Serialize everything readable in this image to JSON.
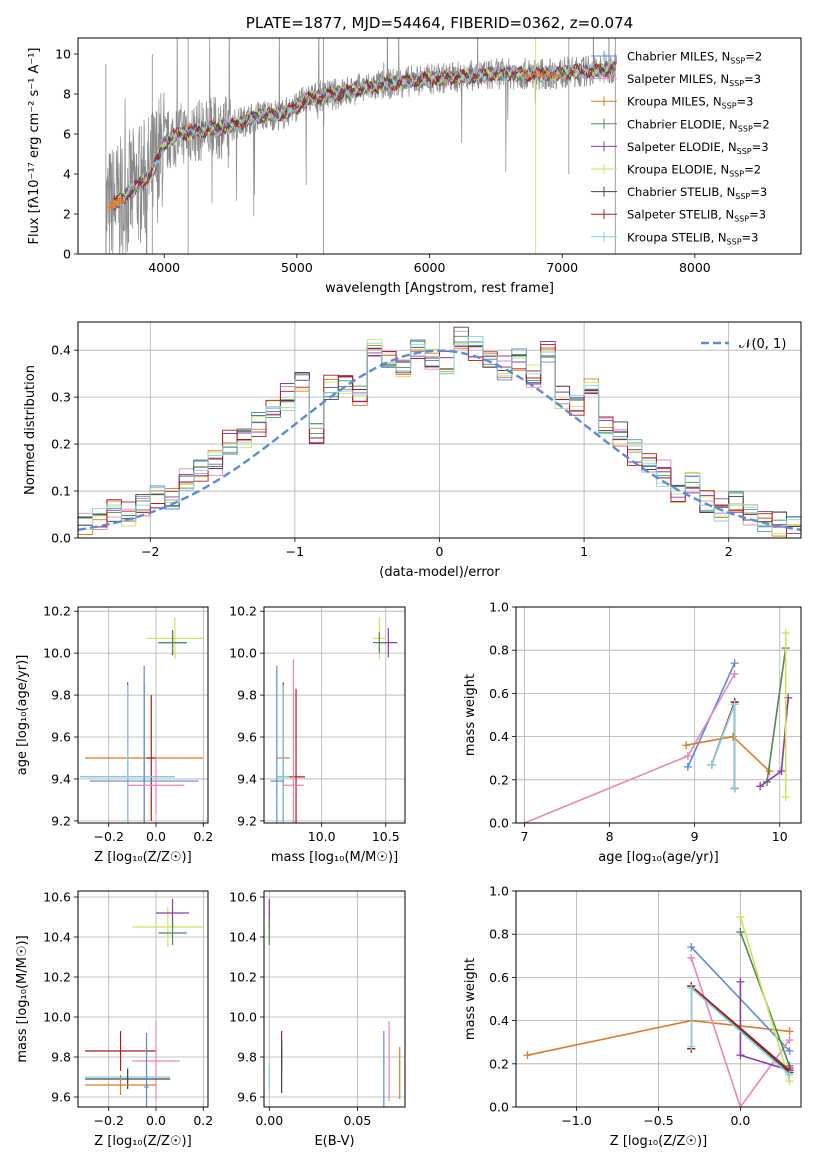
{
  "chart_data": [
    {
      "id": "spectrum",
      "type": "line",
      "title": "PLATE=1877, MJD=54464, FIBERID=0362, z=0.074",
      "xlabel": "wavelength [Angstrom, rest frame]",
      "ylabel": "Flux [fλ10⁻¹⁷ erg cm⁻² s⁻¹ A⁻¹]",
      "xlim": [
        3350,
        8800
      ],
      "ylim": [
        0,
        10.8
      ],
      "xticks": [
        4000,
        5000,
        6000,
        7000,
        8000
      ],
      "yticks": [
        0,
        2,
        4,
        6,
        8,
        10
      ],
      "legend_loc": "upper right",
      "legend": [
        {
          "label": "Chabrier MILES, N",
          "sub": "SSP",
          "tail": "=2",
          "color": "#5b8bd9"
        },
        {
          "label": "Salpeter MILES, N",
          "sub": "SSP",
          "tail": "=3",
          "color": "#e887b8"
        },
        {
          "label": "Kroupa MILES, N",
          "sub": "SSP",
          "tail": "=3",
          "color": "#e07b25"
        },
        {
          "label": "Chabrier ELODIE, N",
          "sub": "SSP",
          "tail": "=2",
          "color": "#4e8a5a"
        },
        {
          "label": "Salpeter ELODIE, N",
          "sub": "SSP",
          "tail": "=3",
          "color": "#8f3aa8"
        },
        {
          "label": "Kroupa ELODIE, N",
          "sub": "SSP",
          "tail": "=2",
          "color": "#cfe35a"
        },
        {
          "label": "Chabrier STELIB, N",
          "sub": "SSP",
          "tail": "=3",
          "color": "#444444"
        },
        {
          "label": "Salpeter STELIB, N",
          "sub": "SSP",
          "tail": "=3",
          "color": "#b01c1c"
        },
        {
          "label": "Kroupa STELIB, N",
          "sub": "SSP",
          "tail": "=3",
          "color": "#86d3e3"
        }
      ],
      "continuum": {
        "x": [
          3560,
          3650,
          3800,
          3900,
          4000,
          4100,
          4300,
          4500,
          4700,
          4900,
          5100,
          5300,
          5500,
          5700,
          5900,
          6100,
          6300,
          6500,
          6700,
          6900,
          7100,
          7300,
          7400
        ],
        "y": [
          2.2,
          2.6,
          3.4,
          4.0,
          5.5,
          6.0,
          6.2,
          6.4,
          6.9,
          7.0,
          7.8,
          8.0,
          8.3,
          8.5,
          8.7,
          8.8,
          8.9,
          9.0,
          9.0,
          9.0,
          9.1,
          9.2,
          9.3
        ]
      }
    },
    {
      "id": "residuals",
      "type": "step",
      "xlabel": "(data-model)/error",
      "ylabel": "Normed distribution",
      "xlim": [
        -2.5,
        2.5
      ],
      "ylim": [
        0,
        0.46
      ],
      "xticks": [
        -2,
        -1,
        0,
        1,
        2
      ],
      "yticks": [
        0.0,
        0.1,
        0.2,
        0.3,
        0.4
      ],
      "gaussian_label": "𝒩(0, 1)",
      "gaussian_color": "#5b8bd9",
      "bins": [
        -2.5,
        -2.4,
        -2.3,
        -2.2,
        -2.1,
        -2.0,
        -1.9,
        -1.8,
        -1.7,
        -1.6,
        -1.5,
        -1.4,
        -1.3,
        -1.2,
        -1.1,
        -1.0,
        -0.9,
        -0.8,
        -0.7,
        -0.6,
        -0.5,
        -0.4,
        -0.3,
        -0.2,
        -0.1,
        0.0,
        0.1,
        0.2,
        0.3,
        0.4,
        0.5,
        0.6,
        0.7,
        0.8,
        0.9,
        1.0,
        1.1,
        1.2,
        1.3,
        1.4,
        1.5,
        1.6,
        1.7,
        1.8,
        1.9,
        2.0,
        2.1,
        2.2,
        2.3,
        2.4,
        2.5
      ],
      "hist": [
        0.03,
        0.04,
        0.06,
        0.05,
        0.07,
        0.09,
        0.08,
        0.12,
        0.14,
        0.16,
        0.2,
        0.22,
        0.24,
        0.28,
        0.3,
        0.34,
        0.22,
        0.32,
        0.33,
        0.3,
        0.4,
        0.38,
        0.36,
        0.4,
        0.38,
        0.37,
        0.42,
        0.4,
        0.38,
        0.36,
        0.38,
        0.34,
        0.4,
        0.3,
        0.28,
        0.32,
        0.24,
        0.22,
        0.18,
        0.16,
        0.14,
        0.1,
        0.12,
        0.08,
        0.06,
        0.07,
        0.05,
        0.04,
        0.03,
        0.02
      ]
    },
    {
      "id": "age_vs_Z",
      "type": "errorbar",
      "xlabel": "Z [log₁₀(Z/Z☉)]",
      "ylabel": "age  [log₁₀(age/yr)]",
      "xlim": [
        -0.33,
        0.22
      ],
      "ylim": [
        9.19,
        10.22
      ],
      "xticks": [
        -0.2,
        0.0,
        0.2
      ],
      "xticklabels": [
        "−0.2",
        "0.0",
        "0.2"
      ],
      "yticks": [
        9.2,
        9.4,
        9.6,
        9.8,
        10.0,
        10.2
      ],
      "points": [
        {
          "x": 0.08,
          "y": 10.07,
          "xerr": 0.12,
          "yerr": 0.1,
          "color": "#cfe35a"
        },
        {
          "x": 0.07,
          "y": 10.05,
          "xerr": 0.06,
          "yerr": 0.06,
          "color": "#8f3aa8"
        },
        {
          "x": 0.07,
          "y": 10.05,
          "xerr": 0.06,
          "yerr": 0.05,
          "color": "#4e8a5a"
        },
        {
          "x": -0.05,
          "y": 9.5,
          "xerr": 0.25,
          "yerr": 0.35,
          "color": "#e07b25"
        },
        {
          "x": -0.02,
          "y": 9.5,
          "xerr": 0.02,
          "yerr": 0.3,
          "color": "#b01c1c"
        },
        {
          "x": -0.12,
          "y": 9.41,
          "xerr": 0.2,
          "yerr": 0.45,
          "color": "#444444"
        },
        {
          "x": -0.12,
          "y": 9.41,
          "xerr": 0.2,
          "yerr": 0.44,
          "color": "#86d3e3"
        },
        {
          "x": -0.05,
          "y": 9.39,
          "xerr": 0.23,
          "yerr": 0.55,
          "color": "#5b8bd9"
        },
        {
          "x": 0.0,
          "y": 9.37,
          "xerr": 0.12,
          "yerr": 0.14,
          "color": "#e887b8"
        }
      ]
    },
    {
      "id": "age_vs_mass",
      "type": "errorbar",
      "xlabel": "mass [log₁₀(M/M☉)]",
      "xlim": [
        9.55,
        10.65
      ],
      "ylim": [
        9.19,
        10.22
      ],
      "xticks": [
        10.0,
        10.5
      ],
      "xticklabels": [
        "10.0",
        "10.5"
      ],
      "yticks": [
        9.2,
        9.4,
        9.6,
        9.8,
        10.0,
        10.2
      ],
      "points": [
        {
          "x": 10.45,
          "y": 10.07,
          "xerr": 0.05,
          "yerr": 0.1,
          "color": "#cfe35a"
        },
        {
          "x": 10.52,
          "y": 10.05,
          "xerr": 0.07,
          "yerr": 0.07,
          "color": "#8f3aa8"
        },
        {
          "x": 10.45,
          "y": 10.05,
          "xerr": 0.05,
          "yerr": 0.05,
          "color": "#4e8a5a"
        },
        {
          "x": 9.7,
          "y": 9.5,
          "xerr": 0.05,
          "yerr": 0.35,
          "color": "#e07b25"
        },
        {
          "x": 9.8,
          "y": 9.41,
          "xerr": 0.07,
          "yerr": 0.42,
          "color": "#b01c1c"
        },
        {
          "x": 9.7,
          "y": 9.41,
          "xerr": 0.05,
          "yerr": 0.45,
          "color": "#444444"
        },
        {
          "x": 9.7,
          "y": 9.41,
          "xerr": 0.05,
          "yerr": 0.44,
          "color": "#86d3e3"
        },
        {
          "x": 9.65,
          "y": 9.39,
          "xerr": 0.05,
          "yerr": 0.55,
          "color": "#5b8bd9"
        },
        {
          "x": 9.78,
          "y": 9.37,
          "xerr": 0.08,
          "yerr": 0.6,
          "color": "#e887b8"
        }
      ]
    },
    {
      "id": "weight_vs_age",
      "type": "line",
      "xlabel": "age  [log₁₀(age/yr)]",
      "ylabel": "mass weight",
      "xlim": [
        6.9,
        10.25
      ],
      "ylim": [
        0,
        1.0
      ],
      "xticks": [
        7,
        8,
        9,
        10
      ],
      "yticks": [
        0.0,
        0.2,
        0.4,
        0.6,
        0.8,
        1.0
      ],
      "series": [
        {
          "color": "#5b8bd9",
          "x": [
            8.92,
            9.47
          ],
          "y": [
            0.26,
            0.74
          ]
        },
        {
          "color": "#e887b8",
          "x": [
            7.0,
            8.92,
            9.47
          ],
          "y": [
            0.0,
            0.31,
            0.69
          ]
        },
        {
          "color": "#e07b25",
          "x": [
            8.9,
            9.45,
            9.88
          ],
          "y": [
            0.36,
            0.4,
            0.24
          ]
        },
        {
          "color": "#4e8a5a",
          "x": [
            9.85,
            10.07
          ],
          "y": [
            0.19,
            0.81
          ]
        },
        {
          "color": "#8f3aa8",
          "x": [
            9.77,
            10.02,
            10.1
          ],
          "y": [
            0.17,
            0.24,
            0.58
          ]
        },
        {
          "color": "#cfe35a",
          "x": [
            10.07,
            10.07
          ],
          "y": [
            0.12,
            0.88
          ]
        },
        {
          "color": "#444444",
          "x": [
            9.2,
            9.47,
            9.47
          ],
          "y": [
            0.27,
            0.56,
            0.16
          ]
        },
        {
          "color": "#b01c1c",
          "x": [
            9.2,
            9.47,
            9.47
          ],
          "y": [
            0.27,
            0.56,
            0.16
          ]
        },
        {
          "color": "#86d3e3",
          "x": [
            9.2,
            9.47,
            9.47
          ],
          "y": [
            0.27,
            0.55,
            0.16
          ]
        }
      ]
    },
    {
      "id": "mass_vs_Z",
      "type": "errorbar",
      "xlabel": "Z [log₁₀(Z/Z☉)]",
      "ylabel": "mass [log₁₀(M/M☉)]",
      "xlim": [
        -0.33,
        0.22
      ],
      "ylim": [
        9.55,
        10.63
      ],
      "xticks": [
        -0.2,
        0.0,
        0.2
      ],
      "xticklabels": [
        "−0.2",
        "0.0",
        "0.2"
      ],
      "yticks": [
        9.6,
        9.8,
        10.0,
        10.2,
        10.4,
        10.6
      ],
      "points": [
        {
          "x": 0.05,
          "y": 10.45,
          "xerr": 0.15,
          "yerr": 0.1,
          "color": "#cfe35a"
        },
        {
          "x": 0.07,
          "y": 10.52,
          "xerr": 0.07,
          "yerr": 0.07,
          "color": "#8f3aa8"
        },
        {
          "x": 0.07,
          "y": 10.42,
          "xerr": 0.06,
          "yerr": 0.06,
          "color": "#4e8a5a"
        },
        {
          "x": -0.15,
          "y": 9.83,
          "xerr": 0.15,
          "yerr": 0.1,
          "color": "#b01c1c"
        },
        {
          "x": 0.0,
          "y": 9.78,
          "xerr": 0.1,
          "yerr": 0.2,
          "color": "#e887b8"
        },
        {
          "x": -0.12,
          "y": 9.7,
          "xerr": 0.18,
          "yerr": 0.05,
          "color": "#86d3e3"
        },
        {
          "x": -0.12,
          "y": 9.69,
          "xerr": 0.18,
          "yerr": 0.05,
          "color": "#444444"
        },
        {
          "x": -0.15,
          "y": 9.66,
          "xerr": 0.15,
          "yerr": 0.05,
          "color": "#e07b25"
        },
        {
          "x": -0.04,
          "y": 9.65,
          "xerr": 0.01,
          "yerr": 0.27,
          "color": "#5b8bd9"
        }
      ]
    },
    {
      "id": "mass_vs_ebv",
      "type": "errorbar",
      "xlabel": "E(B-V)",
      "xlim": [
        -0.003,
        0.077
      ],
      "ylim": [
        9.55,
        10.63
      ],
      "xticks": [
        0.0,
        0.05
      ],
      "xticklabels": [
        "0.00",
        "0.05"
      ],
      "yticks": [
        9.6,
        9.8,
        10.0,
        10.2,
        10.4,
        10.6
      ],
      "points": [
        {
          "x": 0.0,
          "y": 10.45,
          "xerr": 0.0,
          "yerr": 0.1,
          "color": "#cfe35a"
        },
        {
          "x": 0.0,
          "y": 10.52,
          "xerr": 0.0,
          "yerr": 0.07,
          "color": "#8f3aa8"
        },
        {
          "x": 0.0,
          "y": 10.42,
          "xerr": 0.0,
          "yerr": 0.06,
          "color": "#4e8a5a"
        },
        {
          "x": 0.0,
          "y": 9.7,
          "xerr": 0.0,
          "yerr": 0.07,
          "color": "#86d3e3"
        },
        {
          "x": 0.007,
          "y": 9.83,
          "xerr": 0.0,
          "yerr": 0.1,
          "color": "#b01c1c"
        },
        {
          "x": 0.007,
          "y": 9.75,
          "xerr": 0.0,
          "yerr": 0.13,
          "color": "#444444"
        },
        {
          "x": 0.065,
          "y": 9.73,
          "xerr": 0.0,
          "yerr": 0.2,
          "color": "#5b8bd9"
        },
        {
          "x": 0.068,
          "y": 9.78,
          "xerr": 0.0,
          "yerr": 0.2,
          "color": "#e887b8"
        },
        {
          "x": 0.074,
          "y": 9.72,
          "xerr": 0.0,
          "yerr": 0.13,
          "color": "#e07b25"
        }
      ]
    },
    {
      "id": "weight_vs_Z",
      "type": "line",
      "xlabel": "Z [log₁₀(Z/Z☉)]",
      "ylabel": "mass weight",
      "xlim": [
        -1.37,
        0.37
      ],
      "ylim": [
        0,
        1.0
      ],
      "xticks": [
        -1.0,
        -0.5,
        0.0
      ],
      "xticklabels": [
        "−1.0",
        "−0.5",
        "0.0"
      ],
      "yticks": [
        0.0,
        0.2,
        0.4,
        0.6,
        0.8,
        1.0
      ],
      "series": [
        {
          "color": "#e07b25",
          "x": [
            -1.3,
            -0.3,
            0.3
          ],
          "y": [
            0.24,
            0.4,
            0.35
          ]
        },
        {
          "color": "#5b8bd9",
          "x": [
            -0.3,
            0.3
          ],
          "y": [
            0.74,
            0.26
          ]
        },
        {
          "color": "#e887b8",
          "x": [
            -0.3,
            0.0,
            0.3
          ],
          "y": [
            0.69,
            0.0,
            0.31
          ]
        },
        {
          "color": "#4e8a5a",
          "x": [
            0.0,
            0.3
          ],
          "y": [
            0.81,
            0.19
          ]
        },
        {
          "color": "#cfe35a",
          "x": [
            0.0,
            0.3
          ],
          "y": [
            0.88,
            0.12
          ]
        },
        {
          "color": "#8f3aa8",
          "x": [
            0.0,
            0.0,
            0.3,
            0.3
          ],
          "y": [
            0.58,
            0.24,
            0.17,
            0.18
          ]
        },
        {
          "color": "#444444",
          "x": [
            -0.3,
            -0.3,
            0.3
          ],
          "y": [
            0.27,
            0.56,
            0.16
          ]
        },
        {
          "color": "#b01c1c",
          "x": [
            -0.3,
            -0.3,
            0.3
          ],
          "y": [
            0.27,
            0.56,
            0.17
          ]
        },
        {
          "color": "#86d3e3",
          "x": [
            -0.3,
            -0.3,
            0.3
          ],
          "y": [
            0.28,
            0.55,
            0.15
          ]
        }
      ]
    }
  ]
}
